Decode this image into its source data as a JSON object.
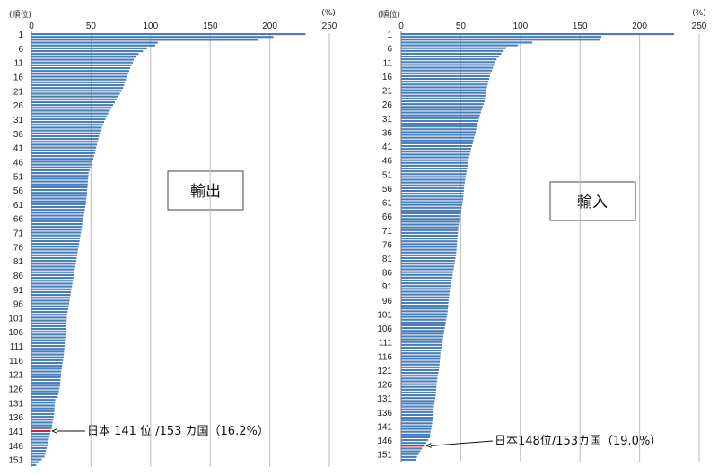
{
  "chart_data": [
    {
      "type": "bar",
      "orientation": "horizontal",
      "title": "輸出",
      "ylabel_unit": "(順位)",
      "xlabel_unit": "(%)",
      "xlim": [
        0,
        250
      ],
      "xticks": [
        "0",
        "50",
        "100",
        "150",
        "200",
        "250"
      ],
      "ytick_labels": [
        "1",
        "6",
        "11",
        "16",
        "21",
        "26",
        "31",
        "36",
        "41",
        "46",
        "51",
        "56",
        "61",
        "66",
        "71",
        "76",
        "81",
        "86",
        "91",
        "96",
        "101",
        "106",
        "111",
        "116",
        "121",
        "126",
        "131",
        "136",
        "141",
        "146",
        "151"
      ],
      "count": 153,
      "highlight_rank": 141,
      "highlight_color": "#e02020",
      "bar_color": "#4a7ebb",
      "annotation": "日本 141 位 /153 カ国（16.2%）",
      "anchors": [
        [
          1,
          230
        ],
        [
          2,
          203
        ],
        [
          3,
          190
        ],
        [
          4,
          106
        ],
        [
          5,
          104
        ],
        [
          6,
          97
        ],
        [
          8,
          90
        ],
        [
          10,
          86
        ],
        [
          12,
          84
        ],
        [
          15,
          81
        ],
        [
          20,
          77
        ],
        [
          25,
          70
        ],
        [
          30,
          63
        ],
        [
          35,
          58
        ],
        [
          40,
          55
        ],
        [
          45,
          52
        ],
        [
          50,
          48
        ],
        [
          55,
          47
        ],
        [
          60,
          46
        ],
        [
          65,
          44
        ],
        [
          70,
          42
        ],
        [
          75,
          40
        ],
        [
          80,
          38
        ],
        [
          85,
          36
        ],
        [
          90,
          34
        ],
        [
          95,
          32
        ],
        [
          100,
          30
        ],
        [
          105,
          29
        ],
        [
          110,
          28
        ],
        [
          115,
          27
        ],
        [
          120,
          25
        ],
        [
          125,
          24
        ],
        [
          129,
          22
        ],
        [
          130,
          20
        ],
        [
          135,
          19
        ],
        [
          140,
          17
        ],
        [
          141,
          16.2
        ],
        [
          145,
          14
        ],
        [
          150,
          11
        ],
        [
          153,
          4
        ]
      ]
    },
    {
      "type": "bar",
      "orientation": "horizontal",
      "title": "輸入",
      "ylabel_unit": "(順位)",
      "xlabel_unit": "(%)",
      "xlim": [
        0,
        250
      ],
      "xticks": [
        "0",
        "50",
        "100",
        "150",
        "200",
        "250"
      ],
      "ytick_labels": [
        "1",
        "6",
        "11",
        "16",
        "21",
        "26",
        "31",
        "36",
        "41",
        "46",
        "51",
        "56",
        "61",
        "66",
        "71",
        "76",
        "81",
        "86",
        "91",
        "96",
        "101",
        "106",
        "111",
        "116",
        "121",
        "126",
        "131",
        "136",
        "141",
        "146",
        "151"
      ],
      "count": 153,
      "highlight_rank": 148,
      "highlight_color": "#e02020",
      "bar_color": "#4a7ebb",
      "annotation": "日本148位/153カ国（19.0%）",
      "anchors": [
        [
          1,
          229
        ],
        [
          2,
          168
        ],
        [
          3,
          167
        ],
        [
          4,
          110
        ],
        [
          5,
          98
        ],
        [
          6,
          88
        ],
        [
          8,
          84
        ],
        [
          10,
          80
        ],
        [
          12,
          78
        ],
        [
          15,
          75
        ],
        [
          20,
          72
        ],
        [
          25,
          70
        ],
        [
          30,
          66
        ],
        [
          35,
          63
        ],
        [
          40,
          60
        ],
        [
          45,
          57
        ],
        [
          50,
          55
        ],
        [
          55,
          53
        ],
        [
          60,
          52
        ],
        [
          65,
          50
        ],
        [
          70,
          48
        ],
        [
          75,
          47
        ],
        [
          80,
          46
        ],
        [
          85,
          44
        ],
        [
          90,
          42
        ],
        [
          95,
          40
        ],
        [
          100,
          39
        ],
        [
          105,
          37
        ],
        [
          110,
          35
        ],
        [
          115,
          33
        ],
        [
          120,
          32
        ],
        [
          125,
          30
        ],
        [
          130,
          29
        ],
        [
          135,
          27
        ],
        [
          140,
          26
        ],
        [
          145,
          24
        ],
        [
          147,
          21
        ],
        [
          148,
          19
        ],
        [
          150,
          16
        ],
        [
          153,
          12
        ]
      ]
    }
  ]
}
